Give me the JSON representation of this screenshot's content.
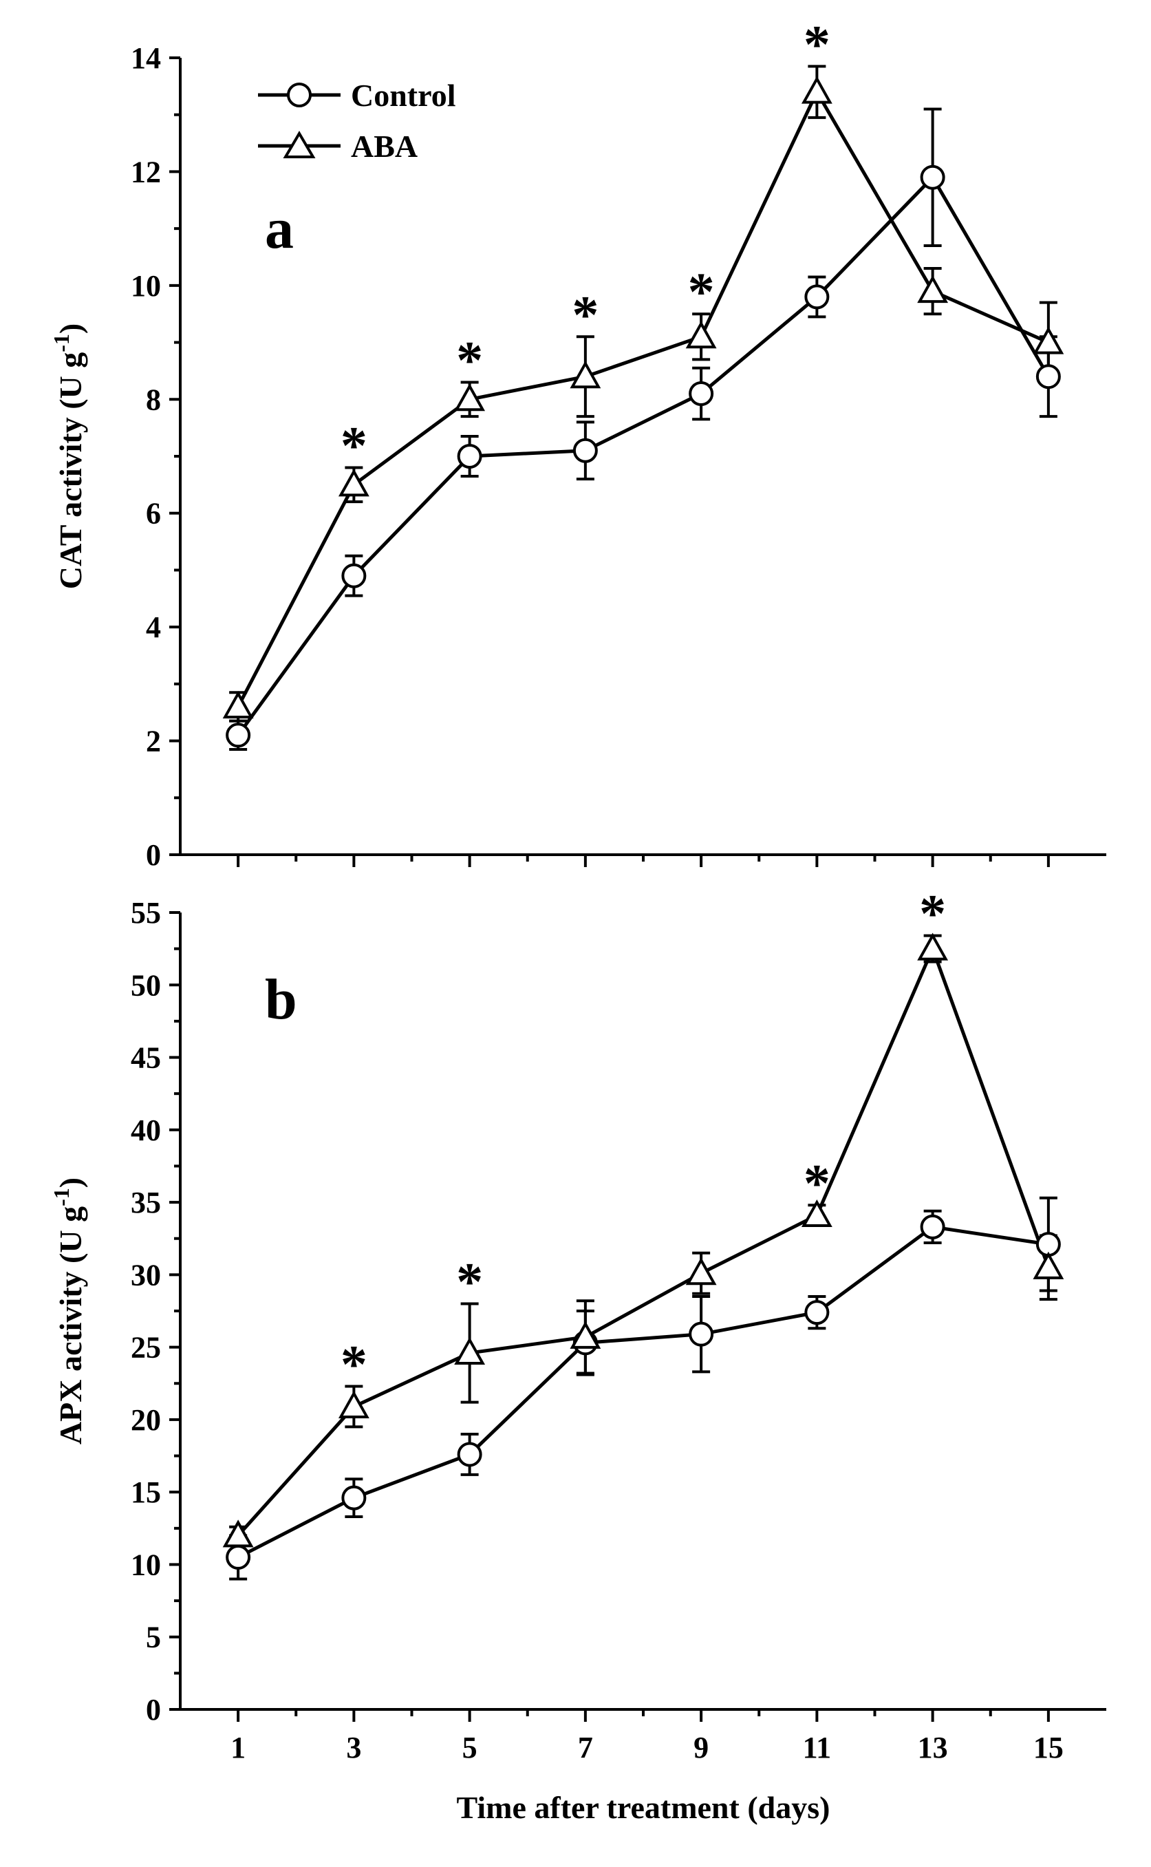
{
  "chart_data": [
    {
      "type": "line",
      "panel_label": "a",
      "ylabel_main": "CAT activity (U g",
      "ylabel_sup": "-1",
      "ylabel_close": ")",
      "xlabel": "",
      "ylim": [
        0,
        14
      ],
      "yticks": [
        0,
        2,
        4,
        6,
        8,
        10,
        12,
        14
      ],
      "xlim": [
        0,
        16
      ],
      "x": [
        1,
        3,
        5,
        7,
        9,
        11,
        13,
        15
      ],
      "legend_position": "top-left",
      "series": [
        {
          "name": "Control",
          "marker": "circle",
          "values": [
            2.1,
            4.9,
            7.0,
            7.1,
            8.1,
            9.8,
            11.9,
            8.4
          ],
          "errors": [
            0.25,
            0.35,
            0.35,
            0.5,
            0.45,
            0.35,
            1.2,
            0.7
          ]
        },
        {
          "name": "ABA",
          "marker": "triangle",
          "values": [
            2.6,
            6.5,
            8.0,
            8.4,
            9.1,
            13.4,
            9.9,
            9.0
          ],
          "errors": [
            0.25,
            0.3,
            0.3,
            0.7,
            0.4,
            0.45,
            0.4,
            0.7
          ]
        }
      ],
      "significance": [
        3,
        5,
        7,
        9,
        11
      ],
      "significance_symbol": "*"
    },
    {
      "type": "line",
      "panel_label": "b",
      "ylabel_main": "APX activity (U g",
      "ylabel_sup": "-1",
      "ylabel_close": ")",
      "xlabel": "Time after treatment (days)",
      "ylim": [
        0,
        55
      ],
      "yticks": [
        0,
        5,
        10,
        15,
        20,
        25,
        30,
        35,
        40,
        45,
        50,
        55
      ],
      "xlim": [
        0,
        16
      ],
      "x": [
        1,
        3,
        5,
        7,
        9,
        11,
        13,
        15
      ],
      "xticks": [
        1,
        3,
        5,
        7,
        9,
        11,
        13,
        15
      ],
      "series": [
        {
          "name": "Control",
          "marker": "circle",
          "values": [
            10.5,
            14.6,
            17.6,
            25.3,
            25.9,
            27.4,
            33.3,
            32.1
          ],
          "errors": [
            1.5,
            1.3,
            1.4,
            2.2,
            2.6,
            1.1,
            1.1,
            3.2
          ]
        },
        {
          "name": "ABA",
          "marker": "triangle",
          "values": [
            12.0,
            20.9,
            24.6,
            25.7,
            30.1,
            34.1,
            52.5,
            30.5
          ],
          "errors": [
            0.6,
            1.4,
            3.4,
            2.5,
            1.4,
            0.7,
            0.9,
            2.2
          ]
        }
      ],
      "significance": [
        3,
        5,
        11,
        13
      ],
      "significance_symbol": "*"
    }
  ]
}
